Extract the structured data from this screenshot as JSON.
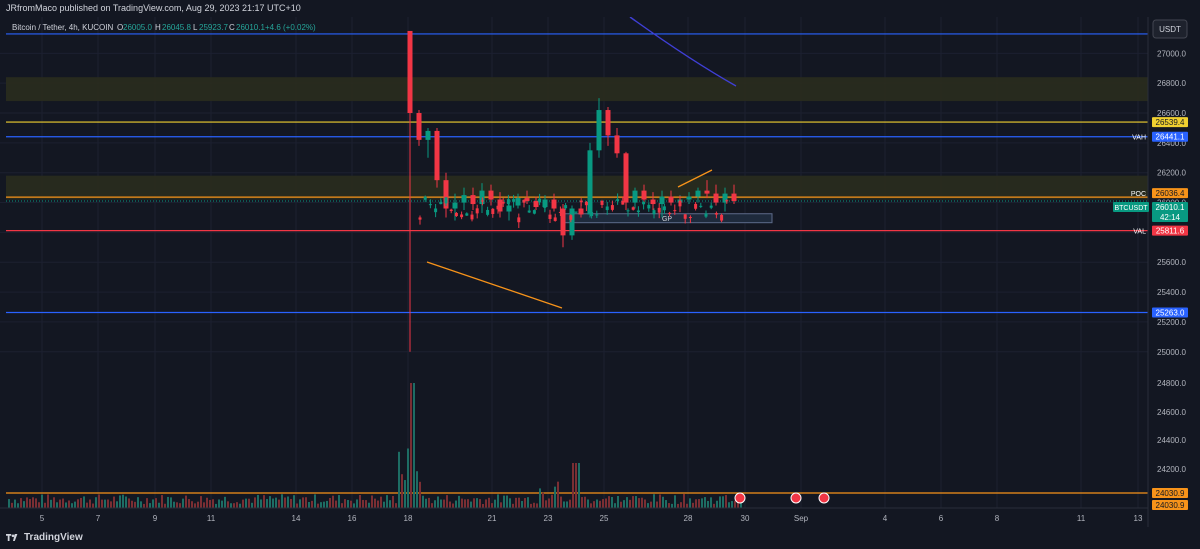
{
  "header": {
    "published_text": "JRfromMaco published on TradingView.com, Aug 29, 2023 21:17 UTC+10",
    "symbol_line": "Bitcoin / Tether, 4h, KUCOIN",
    "ohlc": {
      "o_label": "O",
      "o": "26005.0",
      "h_label": "H",
      "h": "26045.8",
      "l_label": "L",
      "l": "25923.7",
      "c_label": "C",
      "c": "26010.1",
      "change": "+4.6 (+0.02%)"
    }
  },
  "currency_button": "USDT",
  "footer": {
    "brand": "TradingView"
  },
  "chart_data": {
    "type": "candlestick",
    "y_axis": {
      "min": 24900,
      "max": 27150,
      "ticks": [
        25000,
        25200,
        25400,
        25600,
        25800,
        26000,
        26200,
        26400,
        26600,
        26800,
        27000
      ],
      "tick_labels": [
        "25000.0",
        "25200.0",
        "25400.0",
        "25600.0",
        "25800.0",
        "26000.0",
        "26200.0",
        "26400.0",
        "26600.0",
        "26800.0",
        "27000.0"
      ]
    },
    "x_axis": {
      "ticks": [
        "5",
        "7",
        "9",
        "11",
        "14",
        "16",
        "18",
        "21",
        "23",
        "25",
        "28",
        "30",
        "Sep",
        "4",
        "6",
        "8",
        "11",
        "13"
      ]
    },
    "volume_axis_labels": [
      "24800.0",
      "24600.0",
      "24400.0",
      "24200.0"
    ],
    "price_labels": [
      {
        "name": "",
        "value": "26539.4",
        "color": "#f0d030"
      },
      {
        "name": "VAH",
        "value": "26441.1",
        "color": "#2962ff"
      },
      {
        "name": "POC",
        "value": "26036.4",
        "color": "#f7931a"
      },
      {
        "name": "BTCUSDT",
        "value": "26010.1",
        "countdown": "42:14",
        "color": "#089981"
      },
      {
        "name": "VAL",
        "value": "25811.6",
        "color": "#f23645"
      },
      {
        "name": "",
        "value": "25263.0",
        "color": "#2962ff"
      },
      {
        "name": "",
        "value": "24030.9",
        "color": "#f7931a"
      },
      {
        "name": "",
        "value": "24030.9",
        "color": "#f7931a"
      }
    ],
    "horizontal_lines": [
      {
        "price": 27130,
        "color": "#2962ff"
      },
      {
        "price": 26539.4,
        "color": "#f0d030"
      },
      {
        "price": 26441.1,
        "color": "#2962ff"
      },
      {
        "price": 26036.4,
        "color": "#f7931a"
      },
      {
        "price": 25811.6,
        "color": "#f23645"
      },
      {
        "price": 25263.0,
        "color": "#2962ff"
      }
    ],
    "zones": [
      {
        "from": 26680,
        "to": 26840,
        "label": ""
      },
      {
        "from": 26020,
        "to": 26180,
        "label": ""
      },
      {
        "from": 25865,
        "to": 25925,
        "label": "GP"
      }
    ],
    "current_price": 26010.1,
    "trend_lines": [
      {
        "points": [
          [
            25640,
            0.115
          ],
          [
            25330,
            0.186
          ]
        ],
        "note": ""
      }
    ],
    "candles_ohlc_approx": [
      [
        27150,
        27150,
        25000,
        26600
      ],
      [
        26600,
        26620,
        26380,
        26420
      ],
      [
        26420,
        26500,
        26300,
        26480
      ],
      [
        26480,
        26500,
        26100,
        26150
      ],
      [
        26150,
        26200,
        25900,
        25960
      ],
      [
        25960,
        26060,
        25880,
        26000
      ],
      [
        26000,
        26100,
        25950,
        26050
      ],
      [
        26050,
        26100,
        25950,
        25990
      ],
      [
        25990,
        26130,
        25930,
        26080
      ],
      [
        26080,
        26120,
        25980,
        26020
      ],
      [
        26020,
        26070,
        25900,
        25940
      ],
      [
        25940,
        26000,
        25880,
        25980
      ],
      [
        25980,
        26060,
        25960,
        26030
      ],
      [
        26030,
        26080,
        25990,
        26010
      ],
      [
        26010,
        26040,
        25950,
        25970
      ],
      [
        25970,
        26050,
        25940,
        26020
      ],
      [
        26020,
        26060,
        25940,
        25960
      ],
      [
        25960,
        25990,
        25700,
        25780
      ],
      [
        25780,
        25980,
        25750,
        25960
      ],
      [
        25960,
        26000,
        25900,
        25920
      ],
      [
        25920,
        26400,
        25900,
        26350
      ],
      [
        26350,
        26700,
        26300,
        26620
      ],
      [
        26620,
        26640,
        26380,
        26450
      ],
      [
        26450,
        26500,
        26300,
        26330
      ],
      [
        26330,
        26340,
        25950,
        26000
      ],
      [
        26000,
        26100,
        25960,
        26080
      ],
      [
        26080,
        26120,
        25990,
        26020
      ],
      [
        26020,
        26070,
        25950,
        25990
      ],
      [
        25990,
        26080,
        25900,
        26040
      ],
      [
        26040,
        26080,
        25980,
        26000
      ],
      [
        26000,
        26050,
        25960,
        26020
      ],
      [
        26020,
        26070,
        25990,
        26040
      ],
      [
        26040,
        26100,
        26000,
        26080
      ],
      [
        26080,
        26150,
        26030,
        26060
      ],
      [
        26060,
        26120,
        25980,
        26000
      ],
      [
        26000,
        26100,
        25940,
        26060
      ],
      [
        26060,
        26120,
        25990,
        26010
      ]
    ]
  }
}
